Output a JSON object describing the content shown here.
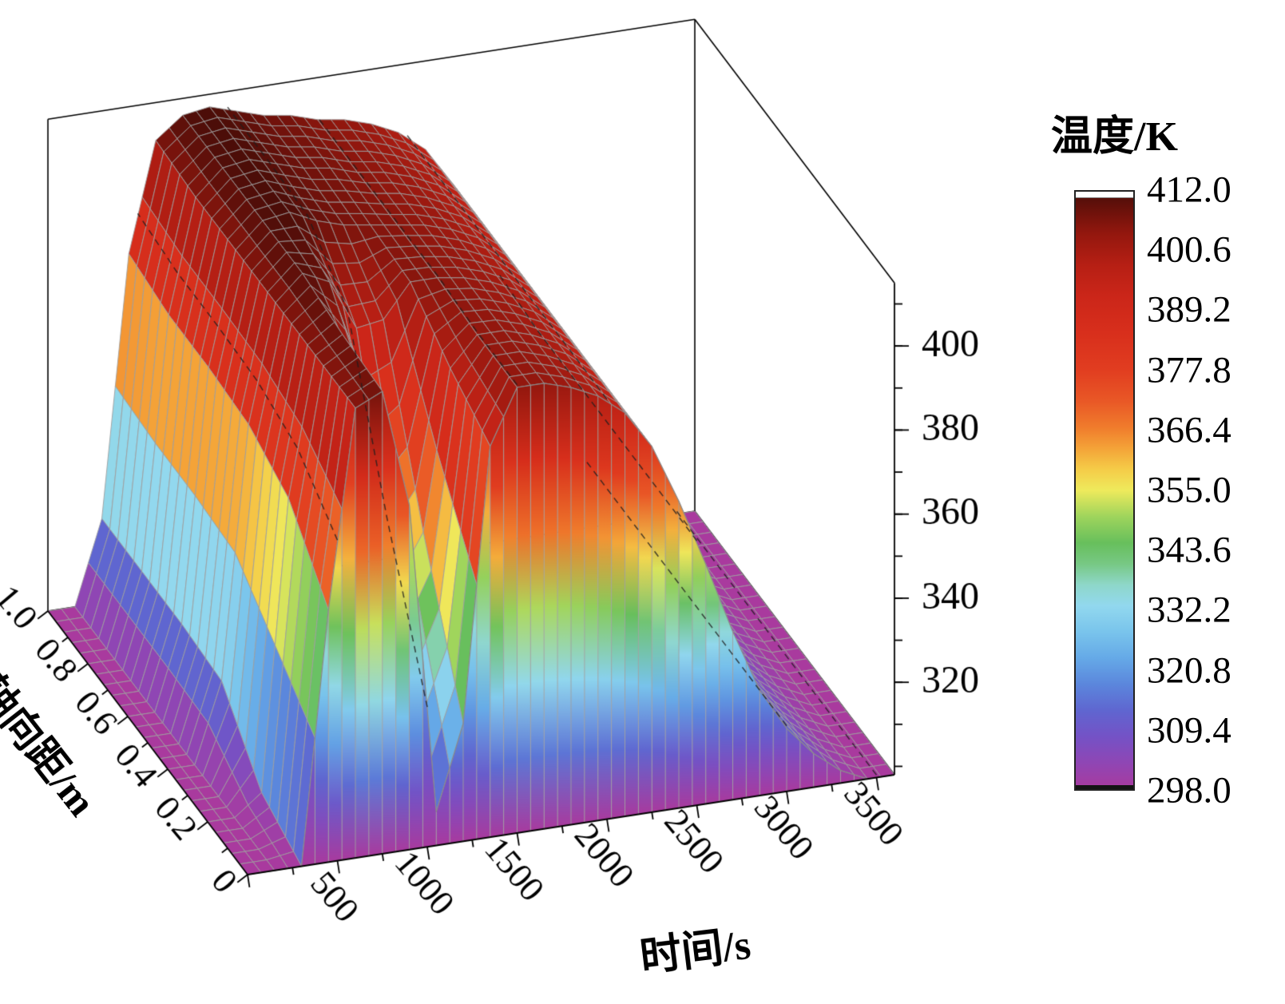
{
  "chart_data": {
    "type": "surface3d",
    "title": "",
    "x_axis": {
      "label": "时间/s",
      "range": [
        0,
        3600
      ],
      "ticks": [
        500,
        1000,
        1500,
        2000,
        2500,
        3000,
        3500
      ],
      "minor_step": 250
    },
    "y_axis": {
      "label": "轴向距/m",
      "range": [
        0,
        1.0
      ],
      "ticks": [
        0,
        0.2,
        0.4,
        0.6,
        0.8,
        1.0
      ],
      "minor_step": 0.1
    },
    "z_axis": {
      "label": "温度/K",
      "range": [
        298,
        415
      ],
      "ticks": [
        320,
        340,
        360,
        380,
        400
      ],
      "minor_step": 10
    },
    "colorbar": {
      "title": "温度/K",
      "min": 298,
      "max": 412,
      "labels": [
        "412.0",
        "400.6",
        "389.2",
        "377.8",
        "366.4",
        "355.0",
        "343.6",
        "332.2",
        "320.8",
        "309.4",
        "298.0"
      ]
    },
    "colormap": [
      [
        298,
        "#a93a9e"
      ],
      [
        303,
        "#8f46b4"
      ],
      [
        308,
        "#7452c6"
      ],
      [
        313,
        "#5f66d0"
      ],
      [
        318,
        "#5b86dc"
      ],
      [
        323,
        "#65a9e7"
      ],
      [
        328,
        "#79c4ec"
      ],
      [
        333,
        "#92d8ee"
      ],
      [
        337,
        "#8ed7c9"
      ],
      [
        341,
        "#77c884"
      ],
      [
        345,
        "#67bf5c"
      ],
      [
        350,
        "#9ed45c"
      ],
      [
        355,
        "#eeea5c"
      ],
      [
        359,
        "#f5cc48"
      ],
      [
        363,
        "#f4a338"
      ],
      [
        367,
        "#f07c2c"
      ],
      [
        372,
        "#e95826"
      ],
      [
        378,
        "#e13d20"
      ],
      [
        385,
        "#d82f1c"
      ],
      [
        392,
        "#cb2619"
      ],
      [
        398,
        "#b61f14"
      ],
      [
        404,
        "#93170e"
      ],
      [
        408,
        "#6f120b"
      ],
      [
        412,
        "#4a0d08"
      ]
    ],
    "mesh_color": "#9e9e9e",
    "dash_color": "rgba(30,30,30,0.8)",
    "surface": {
      "t": [
        0,
        150,
        300,
        450,
        600,
        750,
        900,
        1050,
        1200,
        1350,
        1500,
        1650,
        1800,
        1950,
        2100,
        2250,
        2400,
        2550,
        2700,
        2850,
        3000,
        3150,
        3300,
        3450,
        3600
      ],
      "x": [
        0,
        0.2,
        0.4,
        0.6,
        0.8,
        1.0
      ],
      "temperature": [
        [
          298,
          298,
          298,
          358,
          405,
          408,
          380,
          306,
          326,
          391,
          404,
          404,
          402,
          399,
          394,
          385,
          371,
          355,
          338,
          323,
          313,
          306,
          301,
          298,
          298
        ],
        [
          298,
          298,
          303,
          372,
          405,
          409,
          392,
          348,
          359,
          397,
          404,
          404,
          402,
          399,
          394,
          385,
          371,
          355,
          338,
          323,
          313,
          306,
          301,
          298,
          298
        ],
        [
          298,
          298,
          317,
          377,
          405,
          411,
          408,
          396,
          397,
          405,
          405,
          404,
          402,
          399,
          394,
          385,
          371,
          355,
          338,
          323,
          313,
          306,
          301,
          298,
          298
        ],
        [
          298,
          298,
          318,
          378,
          405,
          411,
          412,
          409,
          407,
          406,
          405,
          404,
          402,
          399,
          394,
          385,
          371,
          355,
          338,
          323,
          313,
          306,
          301,
          298,
          298
        ],
        [
          298,
          298,
          318,
          378,
          405,
          411,
          412,
          410,
          408,
          407,
          405,
          404,
          402,
          399,
          394,
          385,
          371,
          355,
          338,
          323,
          313,
          306,
          301,
          298,
          298
        ],
        [
          298,
          298,
          318,
          380,
          406,
          411,
          412,
          410,
          408,
          407,
          405,
          404,
          402,
          399,
          394,
          385,
          371,
          357,
          338,
          323,
          313,
          306,
          301,
          298,
          298
        ]
      ]
    }
  }
}
